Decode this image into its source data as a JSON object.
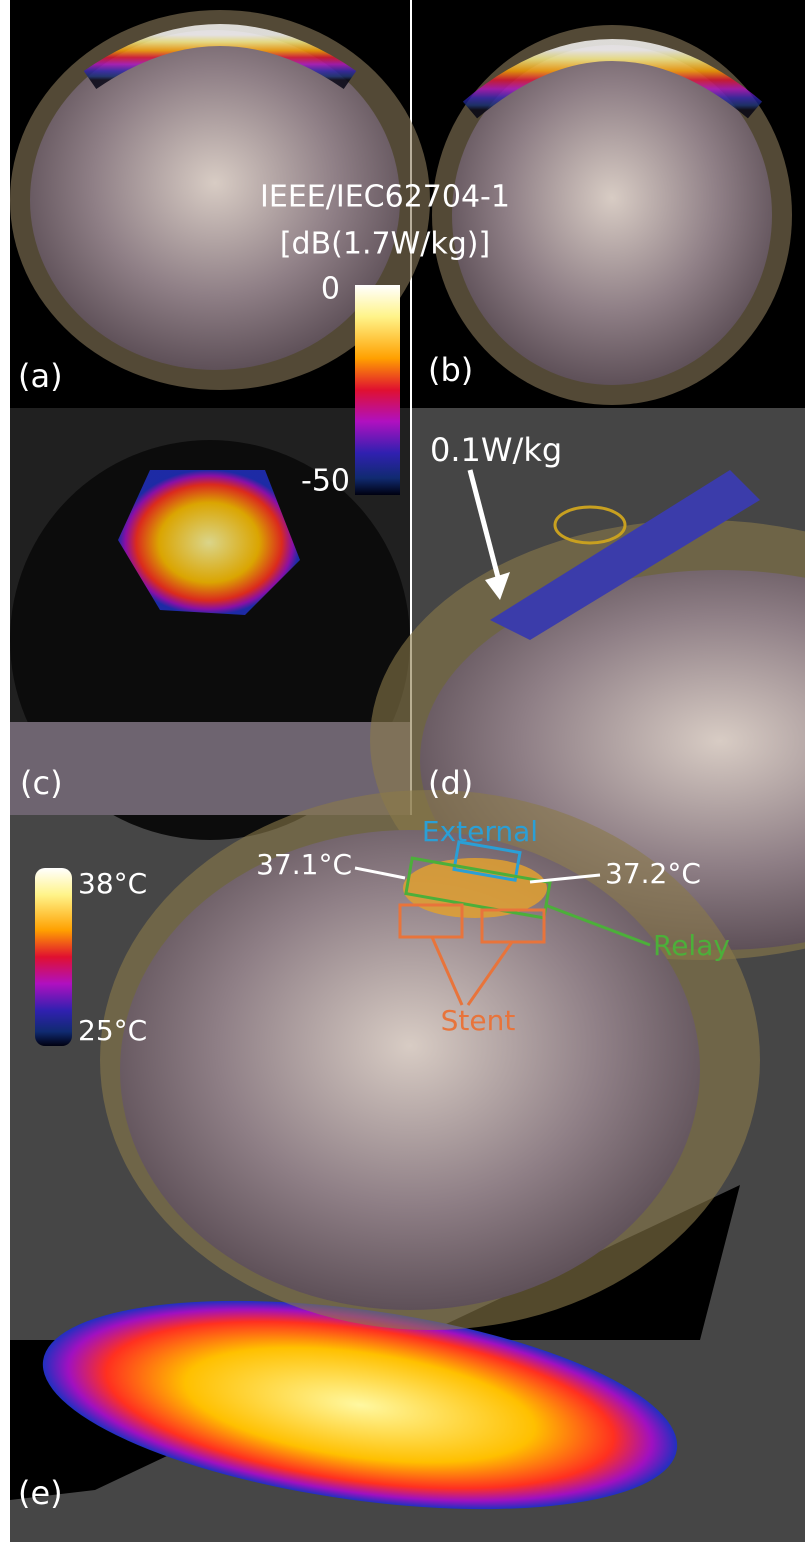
{
  "panels": {
    "a": "(a)",
    "b": "(b)",
    "c": "(c)",
    "d": "(d)",
    "e": "(e)"
  },
  "sar_colorbar": {
    "title": "IEEE/IEC62704-1",
    "unit": "[dB(1.7W/kg)]",
    "max_label": "0",
    "min_label": "-50"
  },
  "panel_d": {
    "annotation": "0.1W/kg"
  },
  "panel_e": {
    "external": "External",
    "relay": "Relay",
    "stent": "Stent",
    "temp_left": "37.1°C",
    "temp_right": "37.2°C",
    "colorbar": {
      "max_label": "38°C",
      "min_label": "25°C"
    }
  }
}
